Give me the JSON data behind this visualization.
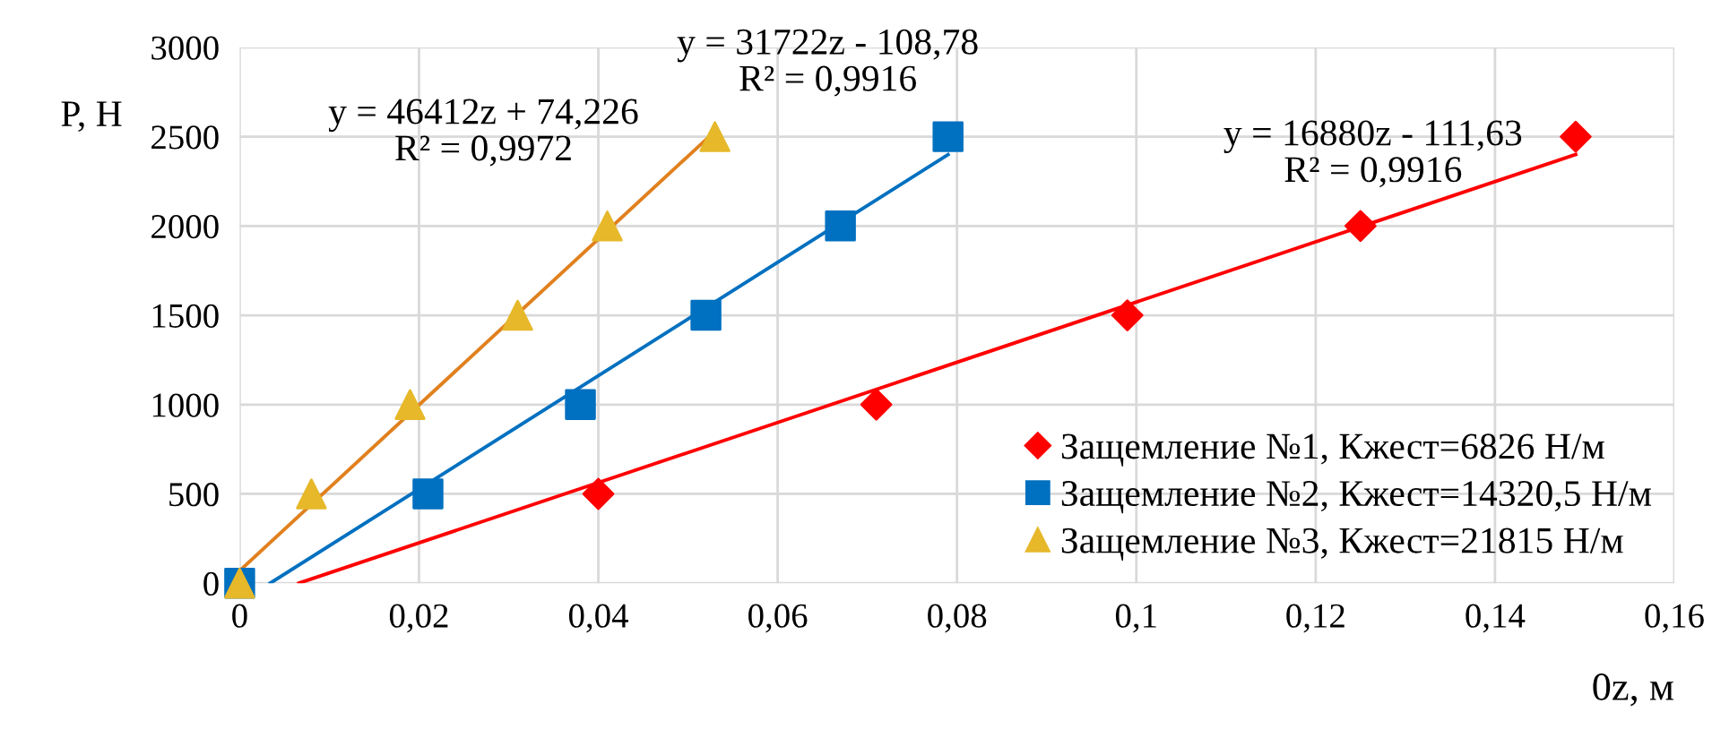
{
  "chart_data": {
    "type": "scatter",
    "xlabel": "0z, м",
    "ylabel": "P, Н",
    "xlim": [
      0,
      0.16
    ],
    "ylim": [
      0,
      3000
    ],
    "xticks": [
      0,
      {
        "value": 0.02,
        "label": "0,02"
      },
      {
        "value": 0.04,
        "label": "0,04"
      },
      {
        "value": 0.06,
        "label": "0,06"
      },
      {
        "value": 0.08,
        "label": "0,08"
      },
      {
        "value": 0.1,
        "label": "0,1"
      },
      {
        "value": 0.12,
        "label": "0,12"
      },
      {
        "value": 0.14,
        "label": "0,14"
      },
      {
        "value": 0.16,
        "label": "0,16"
      }
    ],
    "yticks": [
      0,
      500,
      1000,
      1500,
      2000,
      2500,
      3000
    ],
    "grid": true,
    "legend": "bottom right",
    "series": [
      {
        "name": "Защемление №1, Кжест=6826 Н/м",
        "color": "#ff0000",
        "marker": "diamond",
        "x": [
          0.04,
          0.071,
          0.099,
          0.125,
          0.149
        ],
        "values": [
          500,
          1000,
          1500,
          2000,
          2500
        ]
      },
      {
        "name": "Защемление №2, Кжест=14320,5 Н/м",
        "color": "#0070c0",
        "marker": "square",
        "x": [
          0,
          0.021,
          0.038,
          0.052,
          0.067,
          0.079
        ],
        "values": [
          0,
          500,
          1000,
          1500,
          2000,
          2500
        ]
      },
      {
        "name": "Защемление №3, Кжест=21815 Н/м",
        "color": "#e6b82a",
        "marker": "triangle",
        "x": [
          0,
          0.008,
          0.019,
          0.031,
          0.041,
          0.053
        ],
        "values": [
          0,
          500,
          1000,
          1500,
          2000,
          2500
        ]
      },
      {
        "type": "line",
        "color": "#ff0000",
        "marker": "none",
        "x": [
          0.0066,
          0.149
        ],
        "values": [
          0,
          2400
        ]
      },
      {
        "type": "line",
        "color": "#0070c0",
        "marker": "none",
        "x": [
          0.0034,
          0.079
        ],
        "values": [
          0,
          2400
        ]
      },
      {
        "type": "line",
        "color": "#e0801e",
        "marker": "none",
        "x": [
          0,
          0.053
        ],
        "values": [
          70,
          2530
        ]
      }
    ],
    "annotations": [
      "y = 16880z - 111,63\nR² = 0,9916",
      "y = 31722z - 108,78\nR² = 0,9916",
      "y = 46412z + 74,226\nR² = 0,9972"
    ]
  }
}
